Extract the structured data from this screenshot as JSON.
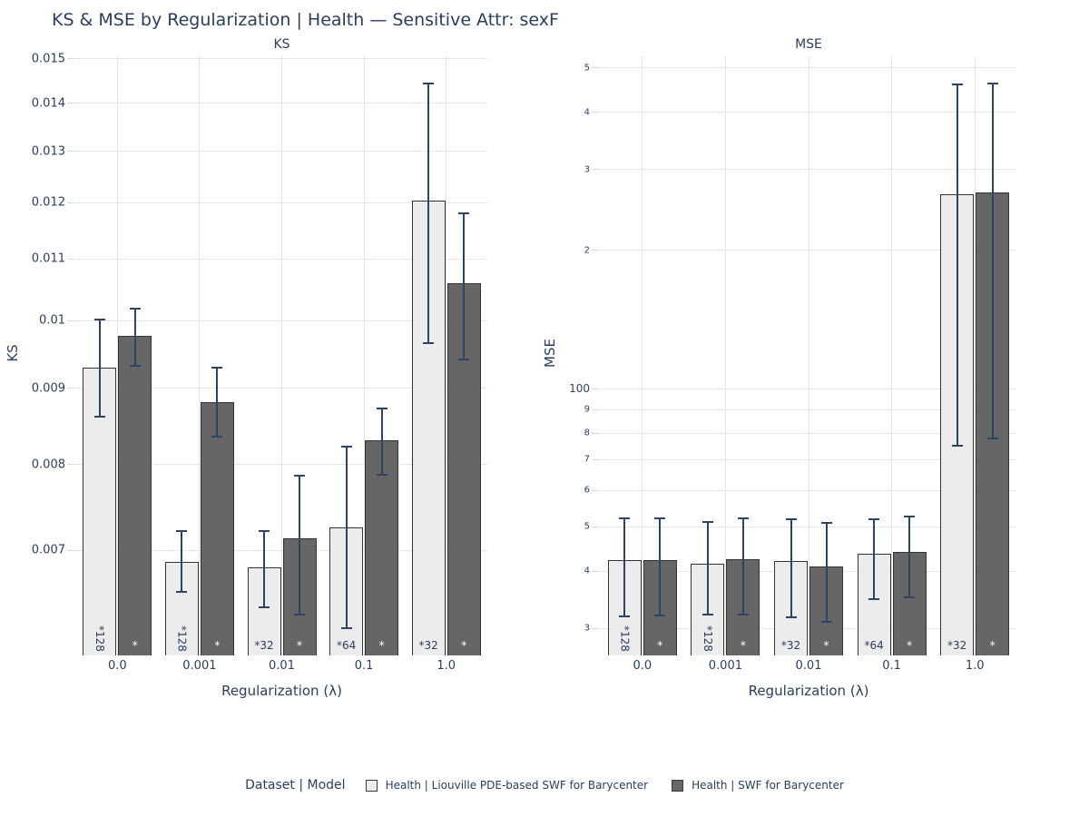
{
  "title": "KS & MSE by Regularization | Health — Sensitive Attr: sexF",
  "colors": {
    "text": "#2a3f5f",
    "grid": "#e5e5e5",
    "light_bar_fill": "#ececec",
    "dark_bar_fill": "#666666",
    "bar_border": "#333333",
    "error_bar": "#2c4465"
  },
  "legend": {
    "title": "Dataset | Model",
    "items": [
      {
        "label": "Health | Liouville PDE-based SWF for Barycenter",
        "color": "#ececec"
      },
      {
        "label": "Health | SWF for Barycenter",
        "color": "#666666"
      }
    ]
  },
  "xlabel": "Regularization (λ)",
  "categories": [
    "0.0",
    "0.001",
    "0.01",
    "0.1",
    "1.0"
  ],
  "chart_data": [
    {
      "type": "bar",
      "title": "KS",
      "ylabel": "KS",
      "xlabel": "Regularization (λ)",
      "yscale": "log",
      "ylim": [
        0.00595,
        0.01506
      ],
      "grid": true,
      "categories": [
        "0.0",
        "0.001",
        "0.01",
        "0.1",
        "1.0"
      ],
      "yticks": [
        {
          "v": 0.015,
          "label": "0.015",
          "minor": false
        },
        {
          "v": 0.014,
          "label": "0.014",
          "minor": false
        },
        {
          "v": 0.013,
          "label": "0.013",
          "minor": false
        },
        {
          "v": 0.012,
          "label": "0.012",
          "minor": false
        },
        {
          "v": 0.011,
          "label": "0.011",
          "minor": false
        },
        {
          "v": 0.01,
          "label": "0.01",
          "minor": false
        },
        {
          "v": 0.009,
          "label": "0.009",
          "minor": false
        },
        {
          "v": 0.008,
          "label": "0.008",
          "minor": false
        },
        {
          "v": 0.007,
          "label": "0.007",
          "minor": false
        }
      ],
      "series": [
        {
          "name": "Health | Liouville PDE-based SWF for Barycenter",
          "fill": "#ececec",
          "label_color": "#2a3f5f",
          "values": [
            0.0093,
            0.00688,
            0.00682,
            0.00726,
            0.01204
          ],
          "err_lo": [
            0.00862,
            0.00657,
            0.00641,
            0.00621,
            0.00966
          ],
          "err_hi": [
            0.01001,
            0.00722,
            0.00721,
            0.00822,
            0.01443
          ],
          "bar_labels": [
            "*128",
            "*128",
            "*32",
            "*64",
            "*32"
          ]
        },
        {
          "name": "Health | SWF for Barycenter",
          "fill": "#666666",
          "label_color": "#ffffff",
          "values": [
            0.00977,
            0.00881,
            0.00713,
            0.00831,
            0.01059
          ],
          "err_lo": [
            0.00932,
            0.00835,
            0.00634,
            0.00787,
            0.00941
          ],
          "err_hi": [
            0.01018,
            0.00929,
            0.00786,
            0.00872,
            0.0118
          ],
          "bar_labels": [
            "*",
            "*",
            "*",
            "*",
            "*"
          ]
        }
      ]
    },
    {
      "type": "bar",
      "title": "MSE",
      "ylabel": "MSE",
      "xlabel": "Regularization (λ)",
      "yscale": "log",
      "ylim": [
        26.2,
        530
      ],
      "grid": true,
      "categories": [
        "0.0",
        "0.001",
        "0.01",
        "0.1",
        "1.0"
      ],
      "yticks": [
        {
          "v": 500,
          "label": "5",
          "minor": true
        },
        {
          "v": 400,
          "label": "4",
          "minor": true
        },
        {
          "v": 300,
          "label": "3",
          "minor": true
        },
        {
          "v": 200,
          "label": "2",
          "minor": true
        },
        {
          "v": 100,
          "label": "100",
          "minor": false
        },
        {
          "v": 90,
          "label": "9",
          "minor": true
        },
        {
          "v": 80,
          "label": "8",
          "minor": true
        },
        {
          "v": 70,
          "label": "7",
          "minor": true
        },
        {
          "v": 60,
          "label": "6",
          "minor": true
        },
        {
          "v": 50,
          "label": "5",
          "minor": true
        },
        {
          "v": 40,
          "label": "4",
          "minor": true
        },
        {
          "v": 30,
          "label": "3",
          "minor": true
        }
      ],
      "series": [
        {
          "name": "Health | Liouville PDE-based SWF for Barycenter",
          "fill": "#ececec",
          "label_color": "#2a3f5f",
          "values": [
            42.2,
            41.6,
            42.0,
            43.7,
            265
          ],
          "err_lo": [
            31.9,
            32.1,
            31.7,
            34.8,
            75
          ],
          "err_hi": [
            52.2,
            51.3,
            52.0,
            51.9,
            460
          ],
          "bar_labels": [
            "*128",
            "*128",
            "*32",
            "*64",
            "*32"
          ]
        },
        {
          "name": "Health | SWF for Barycenter",
          "fill": "#666666",
          "label_color": "#ffffff",
          "values": [
            42.2,
            42.4,
            41.0,
            44.1,
            268
          ],
          "err_lo": [
            32.0,
            32.2,
            31.0,
            35.1,
            78
          ],
          "err_hi": [
            52.1,
            52.1,
            51.0,
            52.5,
            462
          ],
          "bar_labels": [
            "*",
            "*",
            "*",
            "*",
            "*"
          ]
        }
      ]
    }
  ]
}
